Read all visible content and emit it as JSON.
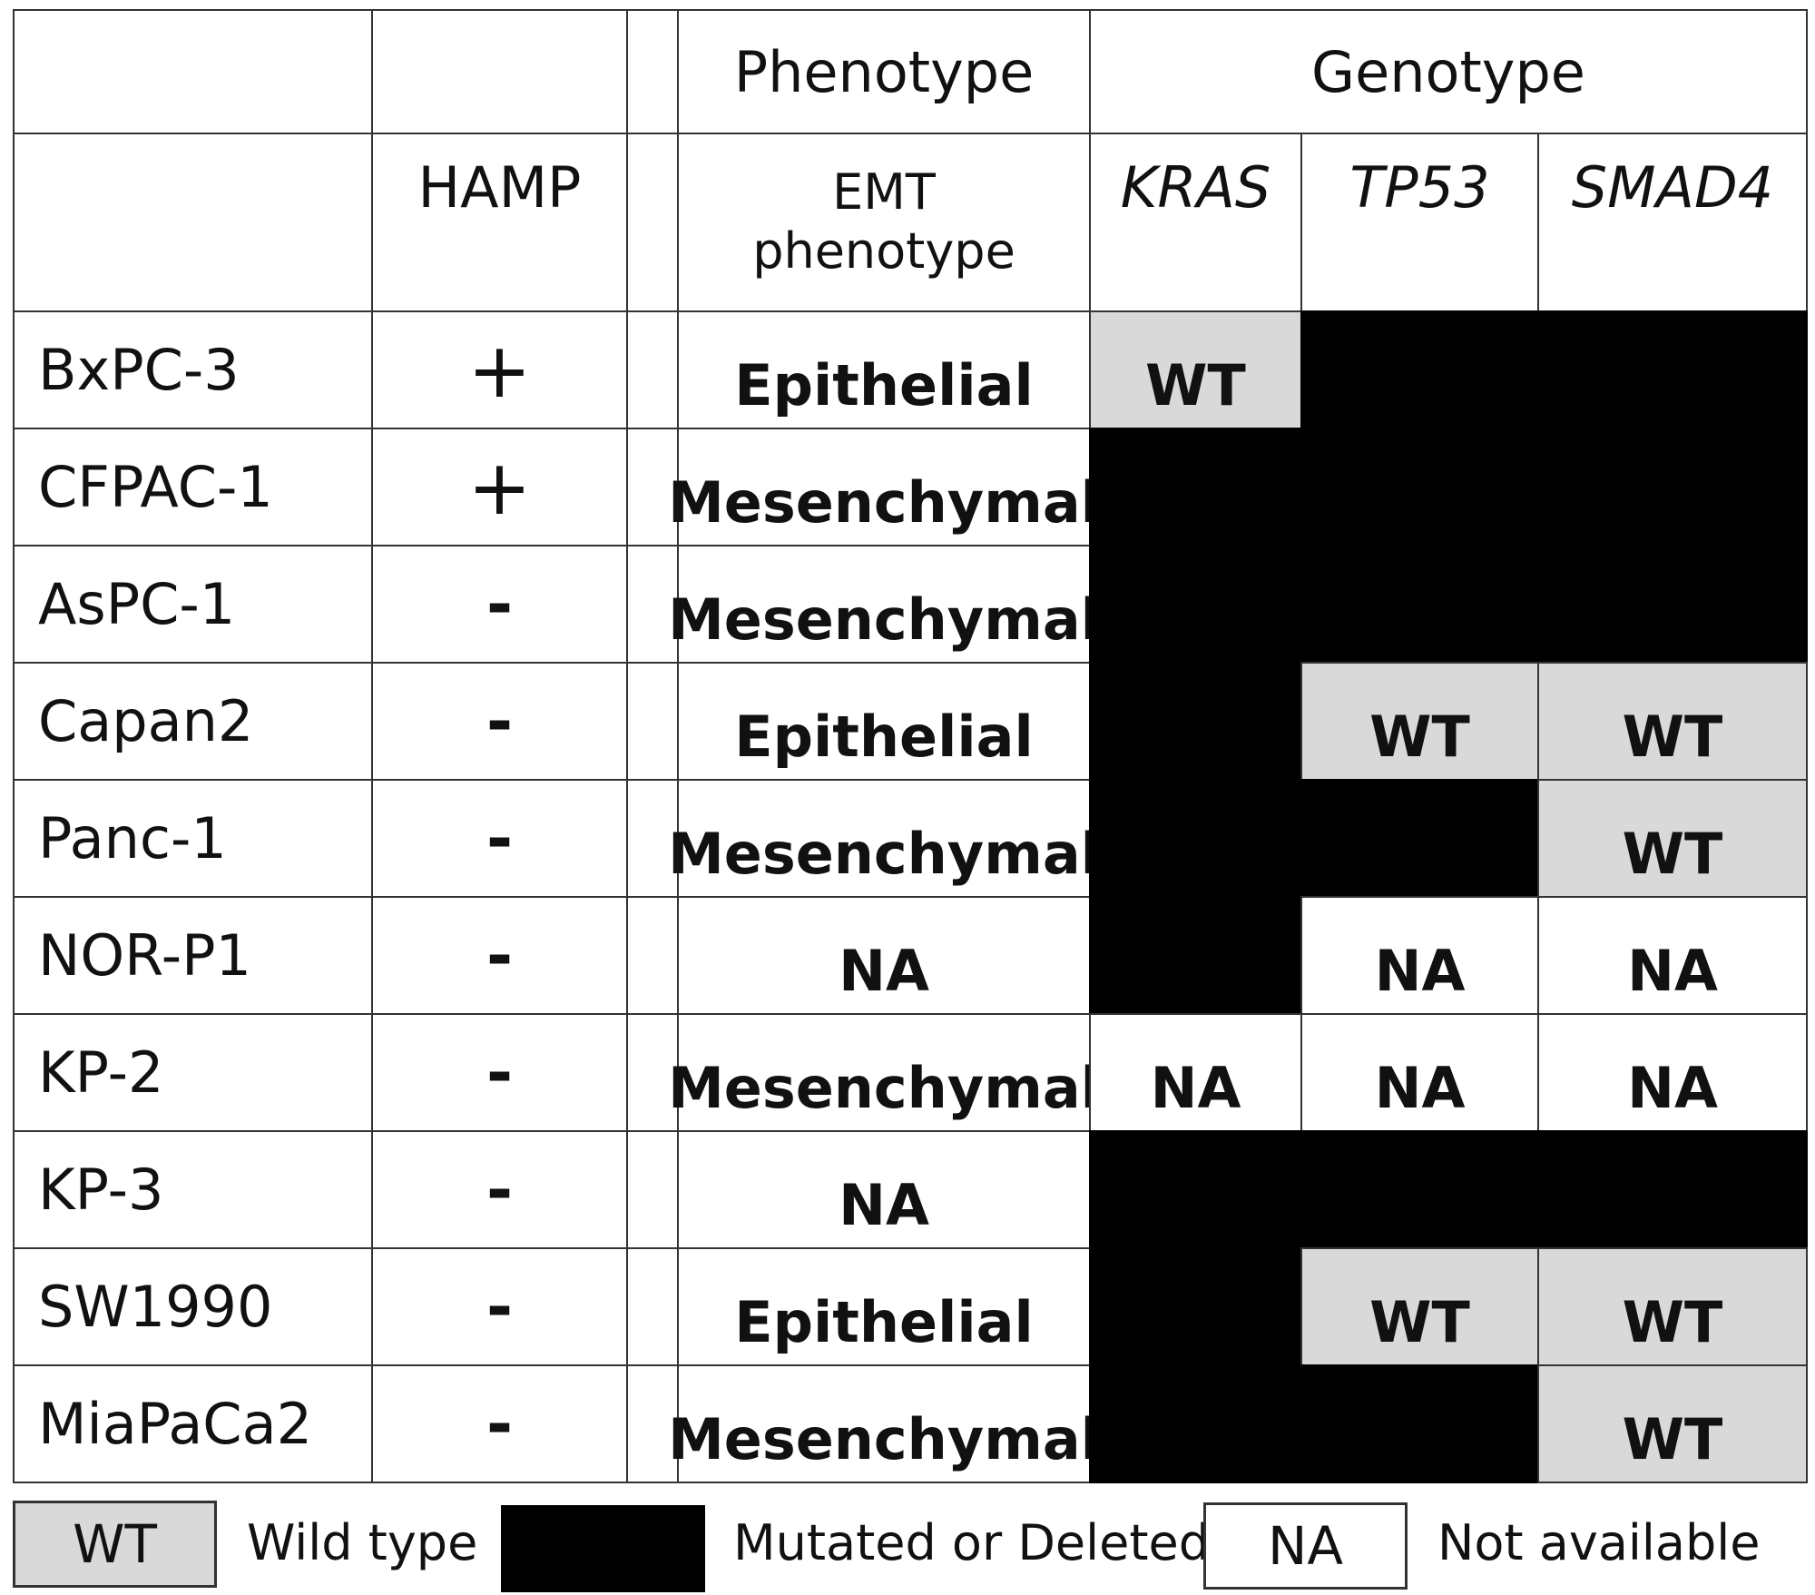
{
  "headers": {
    "phenotype": "Phenotype",
    "genotype": "Genotype",
    "hamp": "HAMP",
    "emt_line1": "EMT",
    "emt_line2": "phenotype",
    "kras": "KRAS",
    "tp53": "TP53",
    "smad4": "SMAD4"
  },
  "rows": [
    {
      "name": "BxPC-3",
      "hamp": "+",
      "phenotype": "Epithelial",
      "kras": "WT",
      "tp53": "",
      "smad4": "",
      "kras_status": "wt",
      "tp53_status": "mut",
      "smad4_status": "mut"
    },
    {
      "name": "CFPAC-1",
      "hamp": "+",
      "phenotype": "Mesenchymal",
      "kras": "",
      "tp53": "",
      "smad4": "",
      "kras_status": "mut",
      "tp53_status": "mut",
      "smad4_status": "mut"
    },
    {
      "name": "AsPC-1",
      "hamp": "-",
      "phenotype": "Mesenchymal",
      "kras": "",
      "tp53": "",
      "smad4": "",
      "kras_status": "mut",
      "tp53_status": "mut",
      "smad4_status": "mut"
    },
    {
      "name": "Capan2",
      "hamp": "-",
      "phenotype": "Epithelial",
      "kras": "",
      "tp53": "WT",
      "smad4": "WT",
      "kras_status": "mut",
      "tp53_status": "wt",
      "smad4_status": "wt"
    },
    {
      "name": "Panc-1",
      "hamp": "-",
      "phenotype": "Mesenchymal",
      "kras": "",
      "tp53": "",
      "smad4": "WT",
      "kras_status": "mut",
      "tp53_status": "mut",
      "smad4_status": "wt"
    },
    {
      "name": "NOR-P1",
      "hamp": "-",
      "phenotype": "NA",
      "kras": "",
      "tp53": "NA",
      "smad4": "NA",
      "kras_status": "mut",
      "tp53_status": "na",
      "smad4_status": "na"
    },
    {
      "name": "KP-2",
      "hamp": "-",
      "phenotype": "Mesenchymal",
      "kras": "NA",
      "tp53": "NA",
      "smad4": "NA",
      "kras_status": "na",
      "tp53_status": "na",
      "smad4_status": "na"
    },
    {
      "name": "KP-3",
      "hamp": "-",
      "phenotype": "NA",
      "kras": "",
      "tp53": "",
      "smad4": "",
      "kras_status": "mut",
      "tp53_status": "mut",
      "smad4_status": "mut"
    },
    {
      "name": "SW1990",
      "hamp": "-",
      "phenotype": "Epithelial",
      "kras": "",
      "tp53": "WT",
      "smad4": "WT",
      "kras_status": "mut",
      "tp53_status": "wt",
      "smad4_status": "wt"
    },
    {
      "name": "MiaPaCa2",
      "hamp": "-",
      "phenotype": "Mesenchymal",
      "kras": "",
      "tp53": "",
      "smad4": "WT",
      "kras_status": "mut",
      "tp53_status": "mut",
      "smad4_status": "wt"
    }
  ],
  "legend": {
    "wt_box": "WT",
    "wt_label": "Wild type",
    "mut_label": "Mutated or Deleted",
    "na_box": "NA",
    "na_label": "Not available"
  },
  "colors": {
    "wild_type": "#d9d9d9",
    "mutated": "#000000",
    "not_available": "#ffffff"
  }
}
